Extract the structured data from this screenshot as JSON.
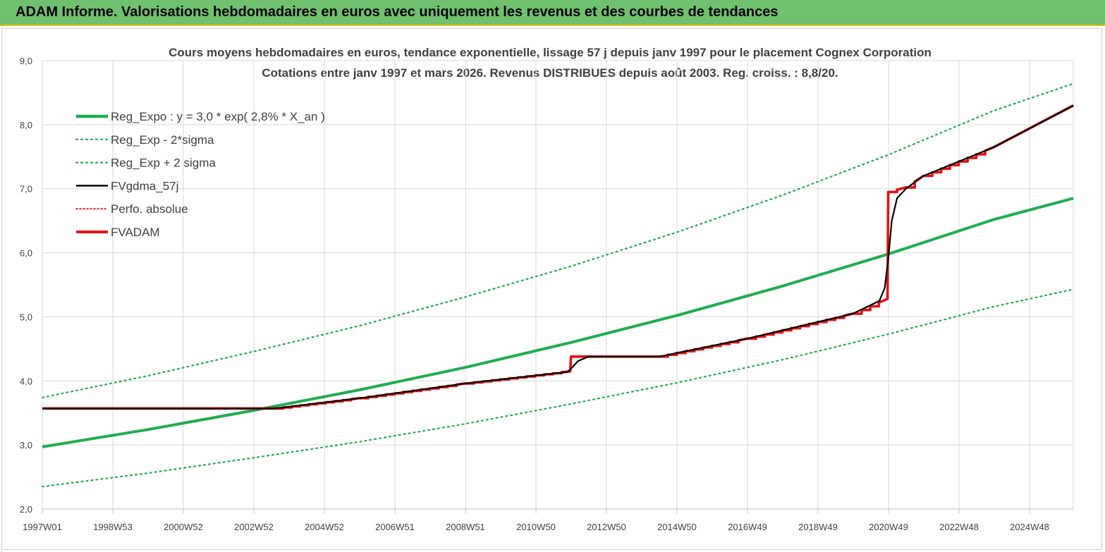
{
  "header": {
    "title": "ADAM Informe. Valorisations hebdomadaires en euros avec uniquement les revenus et des courbes de tendances"
  },
  "chart_data": {
    "type": "line",
    "title": "Cours moyens hebdomadaires en euros, tendance exponentielle, lissage 57 j depuis janv 1997 pour le placement Cognex Corporation",
    "subtitle": "Cotations entre janv 1997 et mars 2026. Revenus DISTRIBUES depuis août 2003. Reg. croiss. : 8,8/20.",
    "xlabel": "",
    "ylabel": "",
    "x_ticks": [
      "1997W01",
      "1998W53",
      "2000W52",
      "2002W52",
      "2004W52",
      "2006W51",
      "2008W51",
      "2010W50",
      "2012W50",
      "2014W50",
      "2016W49",
      "2018W49",
      "2020W49",
      "2022W48",
      "2024W48"
    ],
    "y_ticks": [
      "2,0",
      "3,0",
      "4,0",
      "5,0",
      "6,0",
      "7,0",
      "8,0",
      "9,0"
    ],
    "xlim": [
      1997.0,
      2026.25
    ],
    "ylim": [
      2.0,
      9.0
    ],
    "grid": true,
    "legend_position": "top-left",
    "colors": {
      "reg_expo": "#1fad4f",
      "reg_band": "#1fad4f",
      "fvgdma": "#000000",
      "perfo": "#e02020",
      "fvadam": "#e81010"
    },
    "legend": [
      {
        "key": "reg_expo",
        "label": "Reg_Expo : y = 3,0 * exp( 2,8% *  X_an )"
      },
      {
        "key": "reg_minus",
        "label": "Reg_Exp - 2*sigma"
      },
      {
        "key": "reg_plus",
        "label": "Reg_Exp + 2 sigma"
      },
      {
        "key": "fvgdma",
        "label": "FVgdma_57j"
      },
      {
        "key": "perfo",
        "label": "Perfo. absolue"
      },
      {
        "key": "fvadam",
        "label": "FVADAM"
      }
    ],
    "series": [
      {
        "name": "Reg_Expo : y = 3,0 * exp( 2,8% *  X_an )",
        "x": [
          1997.0,
          2000.0,
          2003.0,
          2006.0,
          2009.0,
          2012.0,
          2015.0,
          2018.0,
          2021.0,
          2024.0,
          2026.25
        ],
        "values": [
          2.97,
          3.24,
          3.54,
          3.86,
          4.21,
          4.6,
          5.02,
          5.48,
          5.98,
          6.52,
          6.85
        ]
      },
      {
        "name": "Reg_Exp - 2*sigma",
        "x": [
          1997.0,
          2000.0,
          2003.0,
          2006.0,
          2009.0,
          2012.0,
          2015.0,
          2018.0,
          2021.0,
          2024.0,
          2026.25
        ],
        "values": [
          2.35,
          2.56,
          2.8,
          3.05,
          3.33,
          3.64,
          3.97,
          4.33,
          4.73,
          5.16,
          5.43
        ]
      },
      {
        "name": "Reg_Exp + 2 sigma",
        "x": [
          1997.0,
          2000.0,
          2003.0,
          2006.0,
          2009.0,
          2012.0,
          2015.0,
          2018.0,
          2021.0,
          2024.0,
          2026.25
        ],
        "values": [
          3.74,
          4.08,
          4.46,
          4.86,
          5.31,
          5.79,
          6.32,
          6.9,
          7.53,
          8.22,
          8.64
        ]
      },
      {
        "name": "FVgdma_57j",
        "x": [
          1997.0,
          2003.6,
          2006.0,
          2009.0,
          2011.9,
          2012.0,
          2012.2,
          2012.5,
          2014.5,
          2017.0,
          2020.0,
          2020.75,
          2020.9,
          2021.0,
          2021.1,
          2021.25,
          2021.5,
          2022.0,
          2024.0,
          2026.25
        ],
        "values": [
          3.57,
          3.57,
          3.73,
          3.96,
          4.14,
          4.19,
          4.31,
          4.38,
          4.38,
          4.66,
          5.05,
          5.25,
          5.45,
          5.9,
          6.5,
          6.85,
          7.0,
          7.2,
          7.65,
          8.3
        ]
      },
      {
        "name": "FVADAM",
        "x": [
          1997.0,
          2003.6,
          2006.0,
          2009.0,
          2011.98,
          2012.0,
          2014.5,
          2017.0,
          2020.0,
          2020.98,
          2021.0,
          2021.5,
          2022.0,
          2024.0,
          2026.25
        ],
        "values": [
          3.57,
          3.57,
          3.73,
          3.96,
          4.15,
          4.38,
          4.38,
          4.66,
          5.05,
          5.28,
          6.95,
          7.02,
          7.2,
          7.65,
          8.3
        ]
      }
    ]
  }
}
